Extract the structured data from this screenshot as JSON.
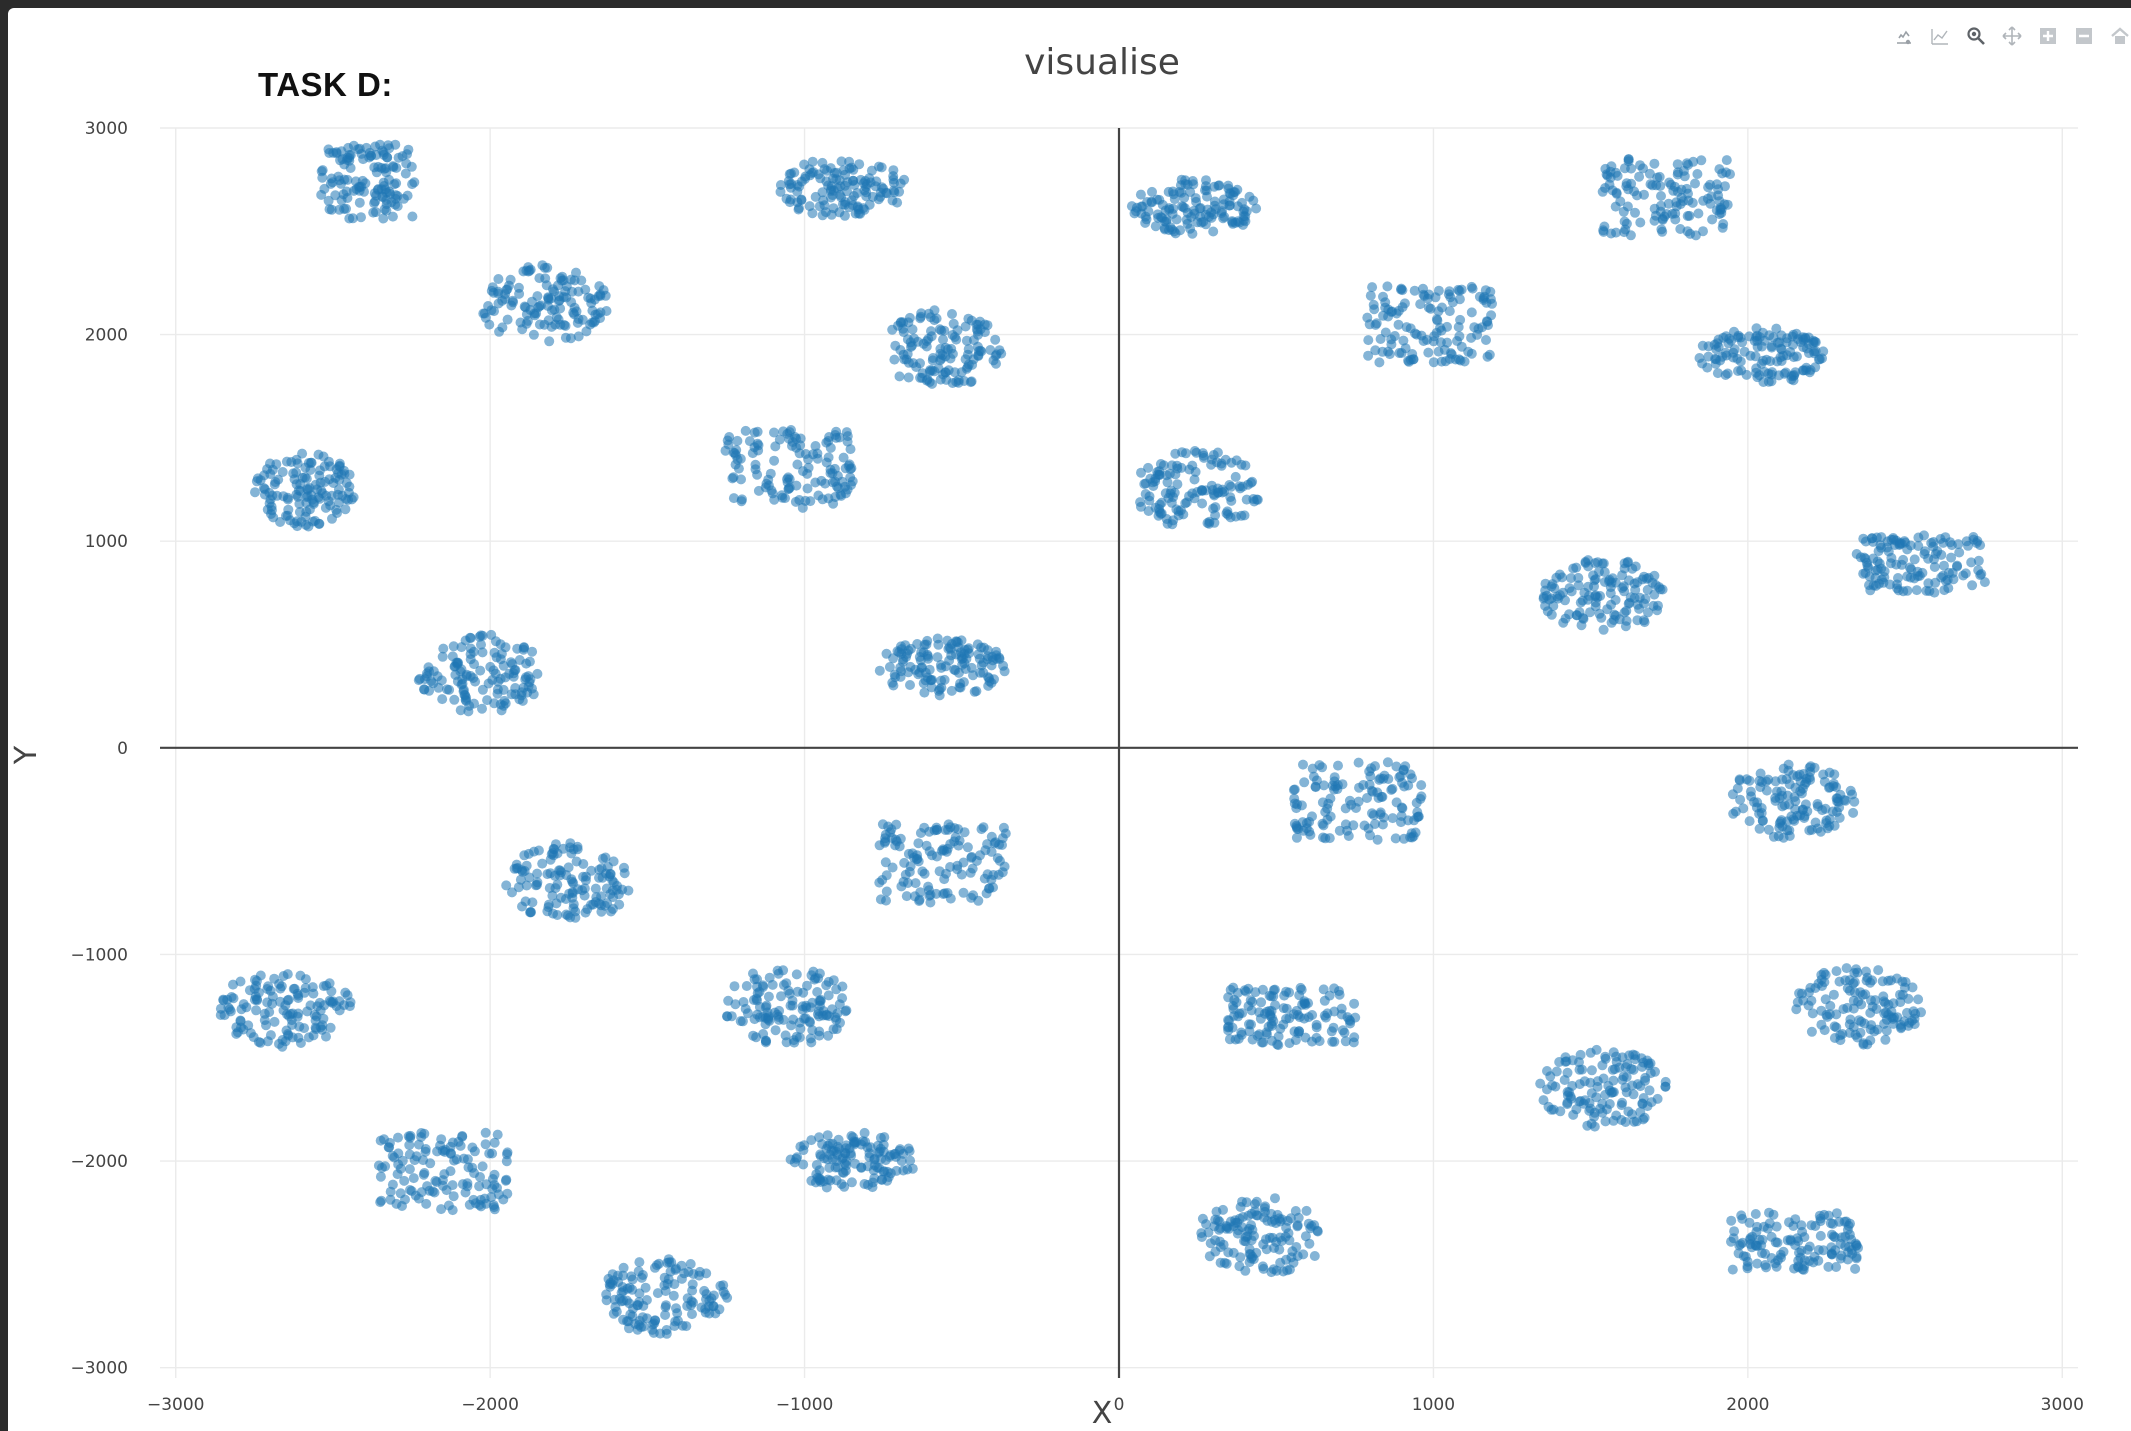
{
  "header": {
    "task_label": "TASK D:"
  },
  "modebar": {
    "buttons": [
      {
        "name": "download-plot-icon"
      },
      {
        "name": "compare-data-icon"
      },
      {
        "name": "zoom-icon"
      },
      {
        "name": "pan-icon"
      },
      {
        "name": "zoom-in-icon"
      },
      {
        "name": "zoom-out-icon"
      },
      {
        "name": "reset-axes-icon"
      }
    ]
  },
  "colors": {
    "marker": "#1f77b4",
    "grid": "#ebebeb",
    "zeroline": "#444444"
  },
  "chart_data": {
    "type": "scatter",
    "title": "visualise",
    "xlabel": "X",
    "ylabel": "Y",
    "xlim": [
      -3050,
      3050
    ],
    "ylim": [
      -3050,
      3000
    ],
    "xticks": [
      -3000,
      -2000,
      -1000,
      0,
      1000,
      2000,
      3000
    ],
    "yticks": [
      -3000,
      -2000,
      -1000,
      0,
      1000,
      2000,
      3000
    ],
    "xtick_labels": [
      "−3000",
      "−2000",
      "−1000",
      "0",
      "1000",
      "2000",
      "3000"
    ],
    "ytick_labels": [
      "−3000",
      "−2000",
      "−1000",
      "0",
      "1000",
      "2000",
      "3000"
    ],
    "grid": true,
    "marker_opacity": 0.55,
    "points_per_cluster": 130,
    "clusters": [
      {
        "cx": -2390,
        "cy": 2740,
        "w": 300,
        "h": 360
      },
      {
        "cx": -880,
        "cy": 2710,
        "w": 410,
        "h": 290
      },
      {
        "cx": 240,
        "cy": 2620,
        "w": 400,
        "h": 280
      },
      {
        "cx": 1740,
        "cy": 2670,
        "w": 410,
        "h": 380
      },
      {
        "cx": -1830,
        "cy": 2150,
        "w": 420,
        "h": 380
      },
      {
        "cx": -560,
        "cy": 1930,
        "w": 400,
        "h": 380
      },
      {
        "cx": 990,
        "cy": 2050,
        "w": 410,
        "h": 370
      },
      {
        "cx": 2050,
        "cy": 1900,
        "w": 410,
        "h": 280
      },
      {
        "cx": -2590,
        "cy": 1250,
        "w": 320,
        "h": 360
      },
      {
        "cx": -1050,
        "cy": 1350,
        "w": 410,
        "h": 380
      },
      {
        "cx": 250,
        "cy": 1250,
        "w": 410,
        "h": 380
      },
      {
        "cx": 1540,
        "cy": 740,
        "w": 400,
        "h": 350
      },
      {
        "cx": 2550,
        "cy": 890,
        "w": 410,
        "h": 280
      },
      {
        "cx": -2030,
        "cy": 360,
        "w": 400,
        "h": 380
      },
      {
        "cx": -560,
        "cy": 390,
        "w": 410,
        "h": 280
      },
      {
        "cx": 760,
        "cy": -260,
        "w": 410,
        "h": 380
      },
      {
        "cx": 2140,
        "cy": -260,
        "w": 410,
        "h": 380
      },
      {
        "cx": -1750,
        "cy": -650,
        "w": 410,
        "h": 380
      },
      {
        "cx": -560,
        "cy": -560,
        "w": 410,
        "h": 380
      },
      {
        "cx": -2650,
        "cy": -1260,
        "w": 420,
        "h": 380
      },
      {
        "cx": -1050,
        "cy": -1250,
        "w": 410,
        "h": 380
      },
      {
        "cx": 550,
        "cy": -1300,
        "w": 410,
        "h": 280
      },
      {
        "cx": 2350,
        "cy": -1250,
        "w": 410,
        "h": 380
      },
      {
        "cx": 1540,
        "cy": -1650,
        "w": 410,
        "h": 380
      },
      {
        "cx": -2150,
        "cy": -2050,
        "w": 420,
        "h": 380
      },
      {
        "cx": -850,
        "cy": -2000,
        "w": 410,
        "h": 280
      },
      {
        "cx": 450,
        "cy": -2360,
        "w": 410,
        "h": 380
      },
      {
        "cx": 2150,
        "cy": -2390,
        "w": 410,
        "h": 280
      },
      {
        "cx": -1450,
        "cy": -2660,
        "w": 410,
        "h": 380
      }
    ]
  }
}
